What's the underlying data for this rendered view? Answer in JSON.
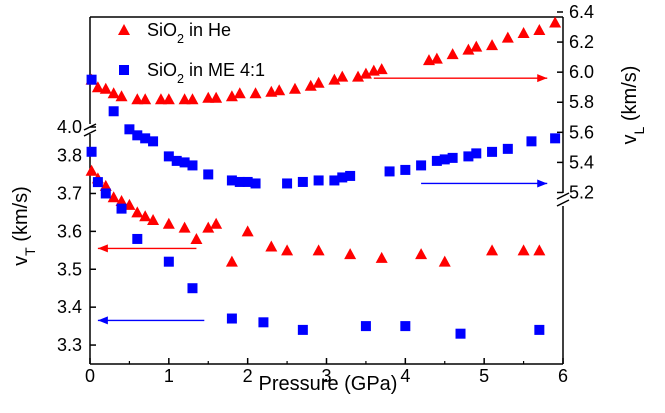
{
  "chart_data": {
    "type": "scatter",
    "xlabel": "Pressure (GPa)",
    "ylabel_left": {
      "base": "v",
      "sub": "T",
      "unit": " (km/s)"
    },
    "ylabel_right": {
      "base": "v",
      "sub": "L",
      "unit": " (km/s)"
    },
    "xlim": [
      0,
      6
    ],
    "x_ticks": [
      "0",
      "1",
      "2",
      "3",
      "4",
      "5",
      "6"
    ],
    "left_axis": {
      "lower_range": [
        3.25,
        3.82
      ],
      "upper_value": 4.0,
      "ticks_lower": [
        "3.3",
        "3.4",
        "3.5",
        "3.6",
        "3.7",
        "3.8"
      ],
      "tick_upper": "4.0"
    },
    "right_axis": {
      "upper_range": [
        5.15,
        6.4
      ],
      "ticks": [
        "5.2",
        "5.4",
        "5.6",
        "5.8",
        "6.0",
        "6.2",
        "6.4"
      ]
    },
    "legend": [
      {
        "base": "SiO",
        "sub": "2",
        "tail": " in He",
        "color": "#ff0000",
        "marker": "triangle"
      },
      {
        "base": "SiO",
        "sub": "2",
        "tail": " in ME 4:1",
        "color": "#0000ff",
        "marker": "square"
      }
    ],
    "series": [
      {
        "name": "SiO2 in He — vL (right axis)",
        "color": "#ff0000",
        "marker": "triangle",
        "axis": "right",
        "points": [
          [
            0.02,
            5.95
          ],
          [
            0.1,
            5.9
          ],
          [
            0.2,
            5.89
          ],
          [
            0.3,
            5.86
          ],
          [
            0.4,
            5.84
          ],
          [
            0.6,
            5.82
          ],
          [
            0.7,
            5.82
          ],
          [
            0.9,
            5.82
          ],
          [
            1.0,
            5.82
          ],
          [
            1.2,
            5.82
          ],
          [
            1.3,
            5.82
          ],
          [
            1.5,
            5.83
          ],
          [
            1.6,
            5.83
          ],
          [
            1.8,
            5.84
          ],
          [
            1.9,
            5.86
          ],
          [
            2.1,
            5.86
          ],
          [
            2.3,
            5.87
          ],
          [
            2.4,
            5.88
          ],
          [
            2.6,
            5.89
          ],
          [
            2.8,
            5.91
          ],
          [
            2.9,
            5.93
          ],
          [
            3.1,
            5.95
          ],
          [
            3.2,
            5.97
          ],
          [
            3.4,
            5.97
          ],
          [
            3.5,
            5.99
          ],
          [
            3.6,
            6.01
          ],
          [
            3.7,
            6.02
          ],
          [
            4.3,
            6.08
          ],
          [
            4.4,
            6.09
          ],
          [
            4.6,
            6.12
          ],
          [
            4.8,
            6.15
          ],
          [
            4.9,
            6.17
          ],
          [
            5.1,
            6.18
          ],
          [
            5.3,
            6.23
          ],
          [
            5.5,
            6.26
          ],
          [
            5.7,
            6.28
          ],
          [
            5.9,
            6.33
          ]
        ]
      },
      {
        "name": "SiO2 in ME 4:1 — vL (right axis)",
        "color": "#0000ff",
        "marker": "square",
        "axis": "right",
        "points": [
          [
            0.02,
            5.95
          ],
          [
            0.3,
            5.74
          ],
          [
            0.5,
            5.62
          ],
          [
            0.6,
            5.58
          ],
          [
            0.7,
            5.56
          ],
          [
            0.8,
            5.54
          ],
          [
            1.0,
            5.44
          ],
          [
            1.1,
            5.41
          ],
          [
            1.2,
            5.4
          ],
          [
            1.3,
            5.38
          ],
          [
            1.5,
            5.32
          ],
          [
            1.8,
            5.28
          ],
          [
            1.9,
            5.27
          ],
          [
            2.0,
            5.27
          ],
          [
            2.1,
            5.26
          ],
          [
            2.5,
            5.26
          ],
          [
            2.7,
            5.27
          ],
          [
            2.9,
            5.28
          ],
          [
            3.1,
            5.28
          ],
          [
            3.2,
            5.3
          ],
          [
            3.3,
            5.31
          ],
          [
            3.8,
            5.34
          ],
          [
            4.0,
            5.35
          ],
          [
            4.2,
            5.38
          ],
          [
            4.4,
            5.41
          ],
          [
            4.5,
            5.42
          ],
          [
            4.6,
            5.43
          ],
          [
            4.8,
            5.44
          ],
          [
            4.9,
            5.46
          ],
          [
            5.1,
            5.47
          ],
          [
            5.3,
            5.49
          ],
          [
            5.6,
            5.54
          ],
          [
            5.9,
            5.56
          ]
        ]
      },
      {
        "name": "SiO2 in He — vT (left axis)",
        "color": "#ff0000",
        "marker": "triangle",
        "axis": "left",
        "points": [
          [
            0.02,
            3.76
          ],
          [
            0.1,
            3.74
          ],
          [
            0.2,
            3.72
          ],
          [
            0.3,
            3.69
          ],
          [
            0.4,
            3.68
          ],
          [
            0.5,
            3.67
          ],
          [
            0.6,
            3.65
          ],
          [
            0.7,
            3.64
          ],
          [
            0.8,
            3.63
          ],
          [
            1.0,
            3.62
          ],
          [
            1.2,
            3.61
          ],
          [
            1.35,
            3.58
          ],
          [
            1.5,
            3.61
          ],
          [
            1.6,
            3.62
          ],
          [
            1.8,
            3.52
          ],
          [
            2.0,
            3.6
          ],
          [
            2.3,
            3.56
          ],
          [
            2.5,
            3.55
          ],
          [
            2.9,
            3.55
          ],
          [
            3.3,
            3.54
          ],
          [
            3.7,
            3.53
          ],
          [
            4.2,
            3.54
          ],
          [
            4.5,
            3.52
          ],
          [
            5.1,
            3.55
          ],
          [
            5.5,
            3.55
          ],
          [
            5.7,
            3.55
          ]
        ]
      },
      {
        "name": "SiO2 in ME 4:1 — vT (left axis)",
        "color": "#0000ff",
        "marker": "square",
        "axis": "left",
        "points": [
          [
            0.02,
            3.81
          ],
          [
            0.1,
            3.73
          ],
          [
            0.2,
            3.7
          ],
          [
            0.4,
            3.66
          ],
          [
            0.6,
            3.58
          ],
          [
            1.0,
            3.52
          ],
          [
            1.3,
            3.45
          ],
          [
            1.8,
            3.37
          ],
          [
            2.2,
            3.36
          ],
          [
            2.7,
            3.34
          ],
          [
            3.5,
            3.35
          ],
          [
            4.0,
            3.35
          ],
          [
            4.7,
            3.33
          ],
          [
            5.7,
            3.34
          ]
        ]
      }
    ],
    "arrows": [
      {
        "color": "#ff0000",
        "direction": "right",
        "axis": "right",
        "x_from": 3.6,
        "x_to": 5.8,
        "y": 5.96
      },
      {
        "color": "#0000ff",
        "direction": "right",
        "axis": "right",
        "x_from": 4.2,
        "x_to": 5.8,
        "y": 5.26
      },
      {
        "color": "#ff0000",
        "direction": "left",
        "axis": "left",
        "x_from": 1.35,
        "x_to": 0.1,
        "y": 3.555
      },
      {
        "color": "#0000ff",
        "direction": "left",
        "axis": "left",
        "x_from": 1.45,
        "x_to": 0.1,
        "y": 3.365
      }
    ]
  }
}
